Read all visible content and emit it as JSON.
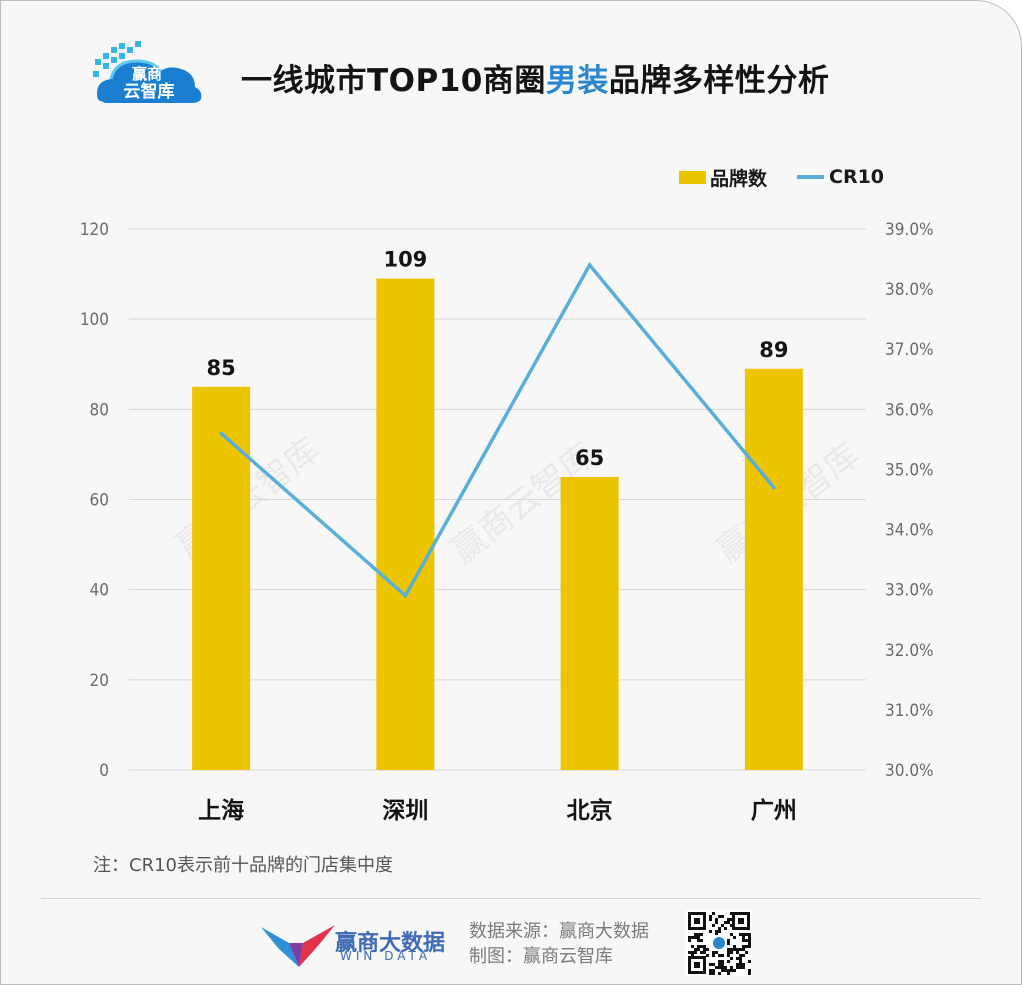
{
  "header": {
    "logo_text_top": "赢商",
    "logo_text_bottom": "云智库",
    "title_before": "一线城市TOP10商圈",
    "title_highlight": "男装",
    "title_after": "品牌多样性分析"
  },
  "colors": {
    "bar": "#ecc400",
    "line": "#5aafd8",
    "grid": "#d7d7d7",
    "title_highlight": "#2a86cf"
  },
  "chart_data": {
    "type": "bar",
    "categories": [
      "上海",
      "深圳",
      "北京",
      "广州"
    ],
    "series": [
      {
        "name": "品牌数",
        "type": "bar",
        "axis": "left",
        "values": [
          85,
          109,
          65,
          89
        ]
      },
      {
        "name": "CR10",
        "type": "line",
        "axis": "right",
        "values": [
          35.6,
          32.9,
          38.4,
          34.7
        ]
      }
    ],
    "y_left": {
      "min": 0,
      "max": 120,
      "ticks": [
        "0",
        "20",
        "40",
        "60",
        "80",
        "100",
        "120"
      ]
    },
    "y_right": {
      "min": 30.0,
      "max": 39.0,
      "unit": "%",
      "ticks": [
        "30.0%",
        "31.0%",
        "32.0%",
        "33.0%",
        "34.0%",
        "35.0%",
        "36.0%",
        "37.0%",
        "38.0%",
        "39.0%"
      ]
    },
    "legend": {
      "position": "top-right",
      "items": [
        "品牌数",
        "CR10"
      ]
    },
    "grid": true,
    "data_labels": [
      "85",
      "109",
      "65",
      "89"
    ]
  },
  "watermark_text": "赢商云智库",
  "note": "注：CR10表示前十品牌的门店集中度",
  "footer": {
    "brand_name": "赢商大数据",
    "brand_en": "WIN DATA",
    "source_line": "数据来源：赢商大数据",
    "maker_line": "制图：赢商云智库"
  }
}
